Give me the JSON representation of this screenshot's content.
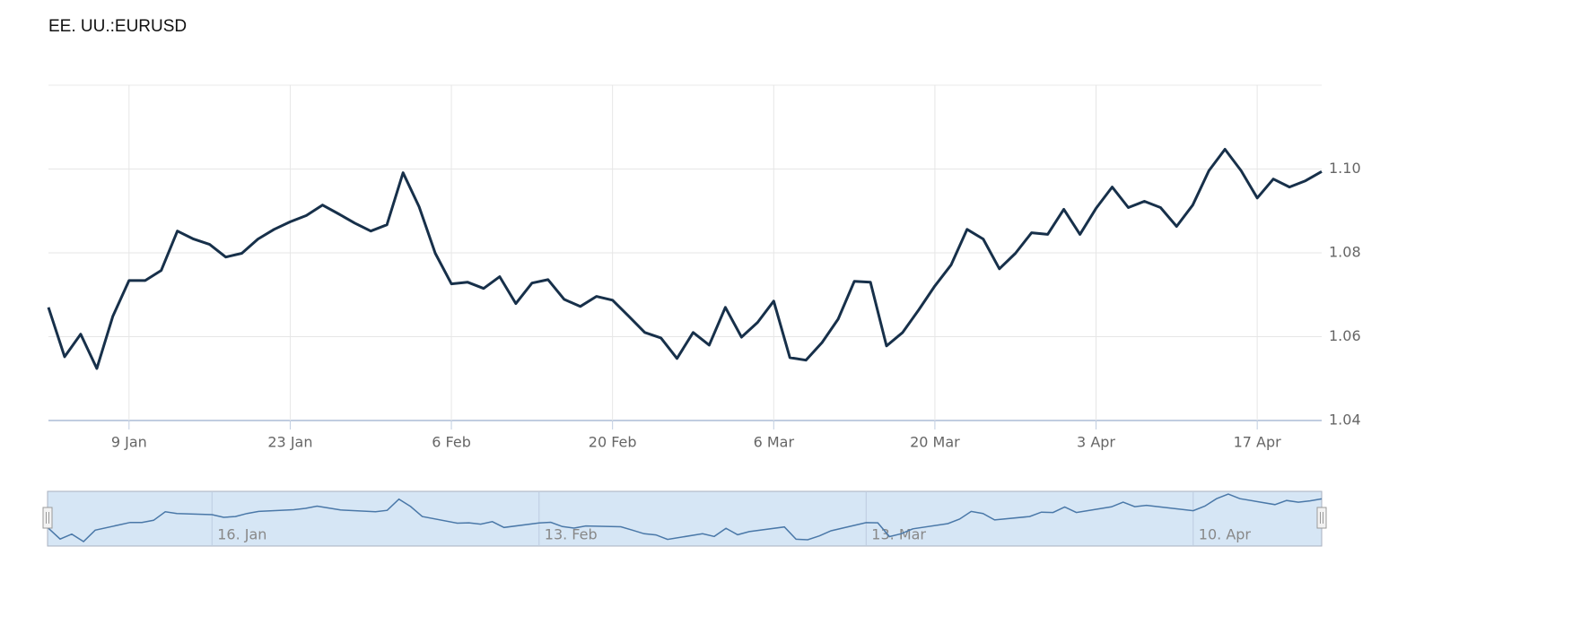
{
  "chart_data": {
    "type": "line",
    "title": "EE. UU.:EURUSD",
    "x": [
      "2 Jan",
      "3 Jan",
      "4 Jan",
      "5 Jan",
      "6 Jan",
      "9 Jan",
      "10 Jan",
      "11 Jan",
      "12 Jan",
      "13 Jan",
      "16 Jan",
      "17 Jan",
      "18 Jan",
      "19 Jan",
      "20 Jan",
      "23 Jan",
      "24 Jan",
      "25 Jan",
      "26 Jan",
      "27 Jan",
      "30 Jan",
      "31 Jan",
      "1 Feb",
      "2 Feb",
      "3 Feb",
      "6 Feb",
      "7 Feb",
      "8 Feb",
      "9 Feb",
      "10 Feb",
      "13 Feb",
      "14 Feb",
      "15 Feb",
      "16 Feb",
      "17 Feb",
      "20 Feb",
      "21 Feb",
      "22 Feb",
      "23 Feb",
      "24 Feb",
      "27 Feb",
      "28 Feb",
      "1 Mar",
      "2 Mar",
      "3 Mar",
      "6 Mar",
      "7 Mar",
      "8 Mar",
      "9 Mar",
      "10 Mar",
      "13 Mar",
      "14 Mar",
      "15 Mar",
      "16 Mar",
      "17 Mar",
      "20 Mar",
      "21 Mar",
      "22 Mar",
      "23 Mar",
      "24 Mar",
      "27 Mar",
      "28 Mar",
      "29 Mar",
      "30 Mar",
      "31 Mar",
      "3 Apr",
      "4 Apr",
      "5 Apr",
      "6 Apr",
      "7 Apr",
      "10 Apr",
      "11 Apr",
      "12 Apr",
      "13 Apr",
      "14 Apr",
      "17 Apr",
      "18 Apr",
      "19 Apr",
      "20 Apr",
      "21 Apr"
    ],
    "values": [
      1.067,
      1.0552,
      1.0606,
      1.0524,
      1.0649,
      1.0734,
      1.0734,
      1.0758,
      1.0852,
      1.0833,
      1.082,
      1.079,
      1.0799,
      1.0833,
      1.0856,
      1.0874,
      1.0889,
      1.0914,
      1.0893,
      1.0871,
      1.0852,
      1.0867,
      1.0991,
      1.091,
      1.0799,
      1.0726,
      1.073,
      1.0715,
      1.0743,
      1.0679,
      1.0728,
      1.0736,
      1.0689,
      1.0672,
      1.0696,
      1.0687,
      1.0649,
      1.061,
      1.0597,
      1.0548,
      1.061,
      1.058,
      1.067,
      1.0599,
      1.0634,
      1.0685,
      1.055,
      1.0544,
      1.0586,
      1.0642,
      1.0732,
      1.073,
      1.0578,
      1.061,
      1.0664,
      1.0721,
      1.0771,
      1.0856,
      1.0833,
      1.0762,
      1.0799,
      1.0848,
      1.0844,
      1.0904,
      1.0844,
      1.0906,
      1.0957,
      1.0908,
      1.0923,
      1.0908,
      1.0863,
      1.0914,
      1.0996,
      1.1047,
      1.0996,
      1.0931,
      1.0976,
      1.0957,
      1.0972,
      1.0994
    ],
    "color": "#17304a",
    "ylim": [
      1.04,
      1.12
    ],
    "yticks": [
      1.04,
      1.06,
      1.08,
      {
        "value": 1.1,
        "label": "1.10"
      }
    ],
    "xticks": [
      "9 Jan",
      "23 Jan",
      "6 Feb",
      "20 Feb",
      "6 Mar",
      "20 Mar",
      "3 Apr",
      "17 Apr"
    ],
    "grid": true,
    "navigator": {
      "xticks": [
        "16. Jan",
        "13. Feb",
        "13. Mar",
        "10. Apr"
      ]
    }
  }
}
